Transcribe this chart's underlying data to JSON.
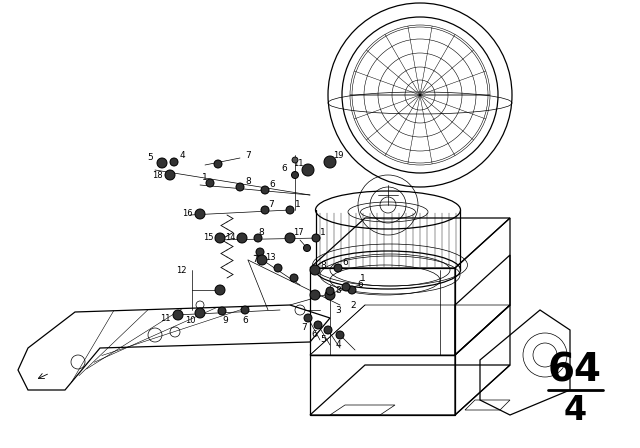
{
  "background_color": "#ffffff",
  "line_color": "#000000",
  "fig_width": 6.4,
  "fig_height": 4.48,
  "dpi": 100,
  "page_number": "64",
  "page_sub": "4"
}
